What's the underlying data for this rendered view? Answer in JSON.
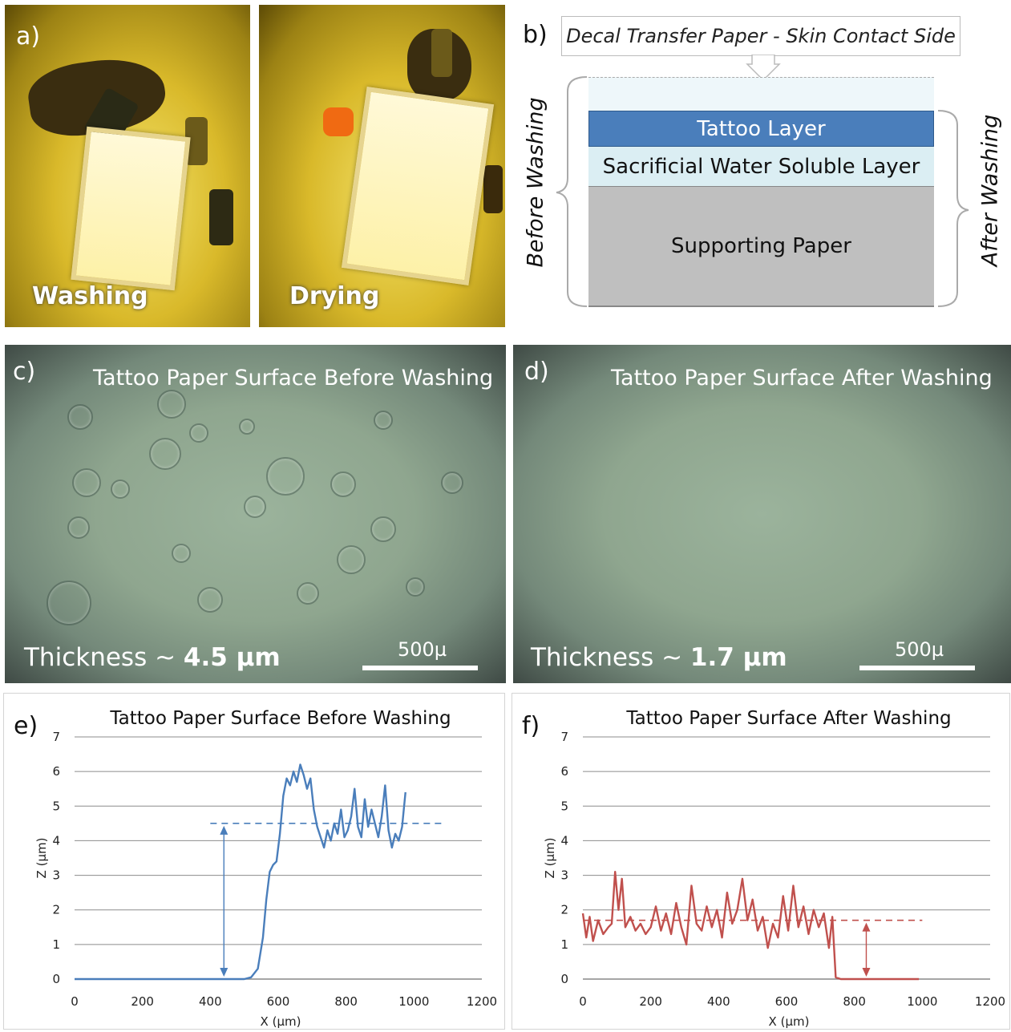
{
  "panel_a": {
    "label": "a)",
    "left_caption": "Washing",
    "right_caption": "Drying"
  },
  "panel_b": {
    "label": "b)",
    "callout": "Decal Transfer Paper - Skin Contact Side",
    "layers": [
      "Tattoo Layer",
      "Sacrificial Water Soluble Layer",
      "Supporting Paper"
    ],
    "left_bracket": "Before Washing",
    "right_bracket": "After Washing",
    "colors": {
      "tattoo": "#4a7ebb",
      "sacrificial": "#dbeef3",
      "supporting": "#bfbfbf"
    }
  },
  "panel_c": {
    "label": "c)",
    "title": "Tattoo Paper Surface Before Washing",
    "thickness_prefix": "Thickness ~ ",
    "thickness_value": "4.5 µm",
    "scale_label": "500µ"
  },
  "panel_d": {
    "label": "d)",
    "title": "Tattoo Paper Surface After Washing",
    "thickness_prefix": "Thickness ~ ",
    "thickness_value": "1.7 µm",
    "scale_label": "500µ"
  },
  "chart_data": [
    {
      "panel": "e)",
      "type": "line",
      "title": "Tattoo Paper Surface Before Washing",
      "xlabel": "X (µm)",
      "ylabel": "Z (µm)",
      "xlim": [
        0,
        1200
      ],
      "ylim": [
        0,
        7
      ],
      "xticks": [
        0,
        200,
        400,
        600,
        800,
        1000,
        1200
      ],
      "yticks": [
        0,
        1,
        2,
        3,
        4,
        5,
        6,
        7
      ],
      "grid": true,
      "color": "#4a7ebb",
      "reference_line": 4.5,
      "x": [
        0,
        100,
        200,
        300,
        400,
        500,
        520,
        540,
        555,
        565,
        575,
        585,
        595,
        605,
        615,
        625,
        635,
        645,
        655,
        665,
        675,
        685,
        695,
        705,
        715,
        725,
        735,
        745,
        755,
        765,
        775,
        785,
        795,
        805,
        815,
        825,
        835,
        845,
        855,
        865,
        875,
        885,
        895,
        905,
        915,
        925,
        935,
        945,
        955,
        965,
        975
      ],
      "y": [
        0,
        0,
        0,
        0,
        0,
        0,
        0.05,
        0.3,
        1.2,
        2.3,
        3.1,
        3.3,
        3.4,
        4.2,
        5.3,
        5.8,
        5.6,
        6.0,
        5.7,
        6.2,
        5.9,
        5.5,
        5.8,
        4.9,
        4.4,
        4.1,
        3.8,
        4.3,
        4.0,
        4.5,
        4.2,
        4.9,
        4.1,
        4.3,
        4.7,
        5.5,
        4.4,
        4.1,
        5.2,
        4.4,
        4.9,
        4.5,
        4.1,
        4.7,
        5.6,
        4.3,
        3.8,
        4.2,
        4.0,
        4.4,
        5.4
      ]
    },
    {
      "panel": "f)",
      "type": "line",
      "title": "Tattoo Paper Surface After Washing",
      "xlabel": "X (µm)",
      "ylabel": "Z (µm)",
      "xlim": [
        0,
        1200
      ],
      "ylim": [
        0,
        7
      ],
      "xticks": [
        0,
        200,
        400,
        600,
        800,
        1000,
        1200
      ],
      "yticks": [
        0,
        1,
        2,
        3,
        4,
        5,
        6,
        7
      ],
      "grid": true,
      "color": "#c0504d",
      "reference_line": 1.7,
      "x": [
        0,
        10,
        20,
        30,
        45,
        60,
        75,
        85,
        95,
        105,
        115,
        125,
        140,
        155,
        170,
        185,
        200,
        215,
        230,
        245,
        260,
        275,
        290,
        305,
        320,
        335,
        350,
        365,
        380,
        395,
        410,
        425,
        440,
        455,
        470,
        485,
        500,
        515,
        530,
        545,
        560,
        575,
        590,
        605,
        620,
        635,
        650,
        665,
        680,
        695,
        710,
        725,
        735,
        745,
        760,
        800,
        850,
        900,
        950,
        990
      ],
      "y": [
        1.9,
        1.2,
        1.8,
        1.1,
        1.7,
        1.3,
        1.5,
        1.6,
        3.1,
        2.0,
        2.9,
        1.5,
        1.8,
        1.4,
        1.6,
        1.3,
        1.5,
        2.1,
        1.4,
        1.9,
        1.3,
        2.2,
        1.5,
        1.0,
        2.7,
        1.6,
        1.4,
        2.1,
        1.5,
        2.0,
        1.2,
        2.5,
        1.6,
        2.0,
        2.9,
        1.7,
        2.3,
        1.4,
        1.8,
        0.9,
        1.6,
        1.2,
        2.4,
        1.4,
        2.7,
        1.5,
        2.1,
        1.3,
        2.0,
        1.5,
        1.9,
        0.9,
        1.8,
        0.05,
        0,
        0,
        0,
        0,
        0,
        0
      ]
    }
  ]
}
